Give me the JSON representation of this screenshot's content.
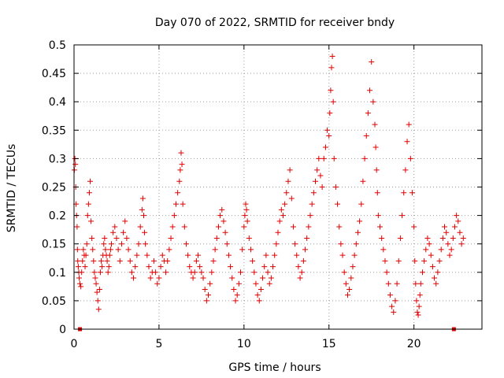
{
  "chart_data": {
    "type": "scatter",
    "title": "Day 070 of 2022, SRMTID for receiver bndy",
    "xlabel": "GPS time / hours",
    "ylabel": "SRMTID / TECUs",
    "xlim": [
      0,
      24
    ],
    "ylim": [
      0,
      0.5
    ],
    "x_ticks": [
      0,
      5,
      10,
      15,
      20
    ],
    "x_tick_labels": [
      "0",
      "5",
      "10",
      "15",
      "20"
    ],
    "y_ticks": [
      0,
      0.05,
      0.1,
      0.15,
      0.2,
      0.25,
      0.3,
      0.35,
      0.4,
      0.45,
      0.5
    ],
    "y_tick_labels": [
      "0",
      "0.05",
      "0.1",
      "0.15",
      "0.2",
      "0.25",
      "0.3",
      "0.35",
      "0.4",
      "0.45",
      "0.5"
    ],
    "grid": true,
    "marker": "+",
    "colors": {
      "series": "#e00000"
    },
    "zero_markers_x": [
      0.35,
      22.35
    ],
    "series": [
      {
        "name": "SRMTID",
        "x": [
          0.02,
          0.05,
          0.08,
          0.1,
          0.12,
          0.15,
          0.18,
          0.2,
          0.22,
          0.25,
          0.28,
          0.3,
          0.35,
          0.4,
          0.45,
          0.5,
          0.55,
          0.6,
          0.65,
          0.7,
          0.75,
          0.8,
          0.85,
          0.9,
          0.95,
          1.0,
          1.05,
          1.1,
          1.15,
          1.2,
          1.25,
          1.3,
          1.35,
          1.4,
          1.45,
          1.5,
          1.55,
          1.6,
          1.65,
          1.7,
          1.75,
          1.8,
          1.85,
          1.9,
          1.95,
          2.0,
          2.05,
          2.1,
          2.15,
          2.2,
          2.3,
          2.4,
          2.5,
          2.6,
          2.7,
          2.8,
          2.9,
          3.0,
          3.1,
          3.2,
          3.3,
          3.4,
          3.5,
          3.6,
          3.7,
          3.8,
          3.9,
          4.0,
          4.05,
          4.1,
          4.15,
          4.2,
          4.3,
          4.4,
          4.5,
          4.6,
          4.7,
          4.8,
          4.9,
          5.0,
          5.1,
          5.2,
          5.3,
          5.4,
          5.5,
          5.6,
          5.7,
          5.8,
          5.9,
          6.0,
          6.1,
          6.2,
          6.25,
          6.3,
          6.35,
          6.4,
          6.5,
          6.6,
          6.7,
          6.8,
          6.9,
          7.0,
          7.1,
          7.2,
          7.3,
          7.4,
          7.5,
          7.6,
          7.7,
          7.8,
          7.9,
          8.0,
          8.1,
          8.2,
          8.3,
          8.4,
          8.5,
          8.6,
          8.7,
          8.8,
          8.9,
          9.0,
          9.1,
          9.2,
          9.3,
          9.4,
          9.5,
          9.6,
          9.7,
          9.8,
          9.9,
          10.0,
          10.05,
          10.1,
          10.15,
          10.2,
          10.3,
          10.4,
          10.5,
          10.6,
          10.7,
          10.8,
          10.9,
          11.0,
          11.1,
          11.2,
          11.3,
          11.4,
          11.5,
          11.6,
          11.7,
          11.8,
          11.9,
          12.0,
          12.1,
          12.2,
          12.3,
          12.4,
          12.5,
          12.6,
          12.7,
          12.8,
          12.9,
          13.0,
          13.1,
          13.2,
          13.3,
          13.4,
          13.5,
          13.6,
          13.7,
          13.8,
          13.9,
          14.0,
          14.1,
          14.2,
          14.3,
          14.4,
          14.5,
          14.6,
          14.7,
          14.8,
          14.9,
          15.0,
          15.05,
          15.1,
          15.15,
          15.2,
          15.25,
          15.3,
          15.4,
          15.5,
          15.6,
          15.7,
          15.8,
          15.9,
          16.0,
          16.1,
          16.2,
          16.3,
          16.4,
          16.5,
          16.6,
          16.7,
          16.8,
          16.9,
          17.0,
          17.1,
          17.2,
          17.3,
          17.4,
          17.5,
          17.6,
          17.7,
          17.75,
          17.8,
          17.85,
          17.9,
          18.0,
          18.1,
          18.2,
          18.3,
          18.4,
          18.5,
          18.6,
          18.7,
          18.8,
          18.9,
          19.0,
          19.1,
          19.2,
          19.3,
          19.4,
          19.5,
          19.6,
          19.7,
          19.8,
          19.9,
          20.0,
          20.05,
          20.1,
          20.15,
          20.2,
          20.25,
          20.3,
          20.35,
          20.4,
          20.5,
          20.6,
          20.7,
          20.8,
          20.9,
          21.0,
          21.1,
          21.2,
          21.3,
          21.4,
          21.5,
          21.6,
          21.7,
          21.8,
          21.9,
          22.0,
          22.1,
          22.2,
          22.3,
          22.4,
          22.5,
          22.6,
          22.7,
          22.8,
          22.9
        ],
        "y": [
          0.28,
          0.3,
          0.29,
          0.25,
          0.22,
          0.2,
          0.18,
          0.14,
          0.12,
          0.11,
          0.1,
          0.09,
          0.08,
          0.075,
          0.1,
          0.12,
          0.14,
          0.13,
          0.11,
          0.13,
          0.15,
          0.2,
          0.22,
          0.24,
          0.26,
          0.19,
          0.16,
          0.14,
          0.12,
          0.1,
          0.09,
          0.08,
          0.065,
          0.05,
          0.035,
          0.07,
          0.1,
          0.12,
          0.11,
          0.13,
          0.15,
          0.16,
          0.14,
          0.13,
          0.12,
          0.1,
          0.11,
          0.13,
          0.14,
          0.15,
          0.17,
          0.18,
          0.16,
          0.14,
          0.12,
          0.15,
          0.17,
          0.19,
          0.16,
          0.14,
          0.12,
          0.1,
          0.09,
          0.11,
          0.13,
          0.15,
          0.18,
          0.21,
          0.23,
          0.2,
          0.17,
          0.15,
          0.13,
          0.11,
          0.09,
          0.1,
          0.12,
          0.1,
          0.08,
          0.09,
          0.11,
          0.13,
          0.12,
          0.1,
          0.12,
          0.14,
          0.16,
          0.18,
          0.2,
          0.22,
          0.24,
          0.26,
          0.28,
          0.31,
          0.29,
          0.22,
          0.18,
          0.15,
          0.13,
          0.11,
          0.1,
          0.09,
          0.1,
          0.12,
          0.13,
          0.11,
          0.1,
          0.09,
          0.07,
          0.05,
          0.06,
          0.08,
          0.1,
          0.12,
          0.14,
          0.16,
          0.18,
          0.2,
          0.21,
          0.19,
          0.17,
          0.15,
          0.13,
          0.11,
          0.09,
          0.07,
          0.05,
          0.06,
          0.08,
          0.1,
          0.14,
          0.18,
          0.2,
          0.22,
          0.21,
          0.19,
          0.16,
          0.14,
          0.12,
          0.1,
          0.08,
          0.06,
          0.05,
          0.07,
          0.09,
          0.11,
          0.13,
          0.1,
          0.08,
          0.09,
          0.11,
          0.13,
          0.15,
          0.17,
          0.19,
          0.21,
          0.2,
          0.22,
          0.24,
          0.26,
          0.28,
          0.23,
          0.18,
          0.15,
          0.13,
          0.11,
          0.09,
          0.1,
          0.12,
          0.14,
          0.16,
          0.18,
          0.2,
          0.22,
          0.24,
          0.26,
          0.28,
          0.3,
          0.27,
          0.25,
          0.3,
          0.32,
          0.35,
          0.34,
          0.38,
          0.42,
          0.46,
          0.48,
          0.4,
          0.3,
          0.25,
          0.22,
          0.18,
          0.15,
          0.13,
          0.1,
          0.08,
          0.06,
          0.07,
          0.09,
          0.11,
          0.13,
          0.15,
          0.17,
          0.19,
          0.22,
          0.26,
          0.3,
          0.34,
          0.38,
          0.42,
          0.47,
          0.4,
          0.36,
          0.32,
          0.28,
          0.24,
          0.2,
          0.18,
          0.16,
          0.14,
          0.12,
          0.1,
          0.08,
          0.06,
          0.04,
          0.03,
          0.05,
          0.08,
          0.12,
          0.16,
          0.2,
          0.24,
          0.28,
          0.33,
          0.36,
          0.3,
          0.24,
          0.18,
          0.12,
          0.08,
          0.05,
          0.03,
          0.025,
          0.04,
          0.06,
          0.08,
          0.1,
          0.12,
          0.14,
          0.16,
          0.15,
          0.13,
          0.11,
          0.09,
          0.08,
          0.1,
          0.12,
          0.14,
          0.16,
          0.18,
          0.17,
          0.15,
          0.13,
          0.14,
          0.16,
          0.18,
          0.2,
          0.19,
          0.17,
          0.15,
          0.16
        ]
      }
    ]
  }
}
